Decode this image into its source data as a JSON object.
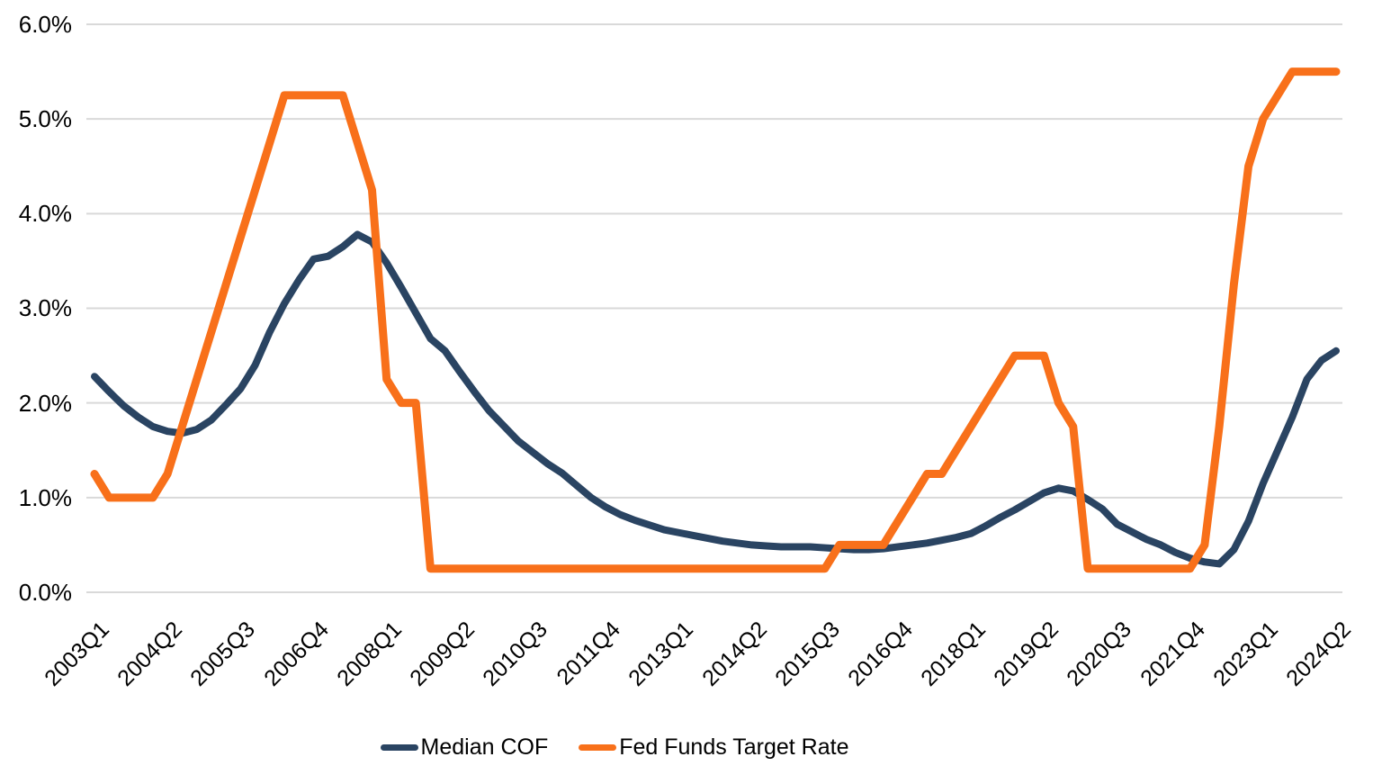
{
  "page": {
    "background": "#FFFFFF",
    "text_color": "#000000"
  },
  "chart_data": {
    "type": "line",
    "title": "",
    "grid": {
      "horizontal": true,
      "color": "#D9D9D9"
    },
    "legend": {
      "position": "bottom"
    },
    "y_axis": {
      "min": 0,
      "max": 6,
      "unit": "%",
      "tick_labels": [
        "0.0%",
        "1.0%",
        "2.0%",
        "3.0%",
        "4.0%",
        "5.0%",
        "6.0%"
      ],
      "tick_values": [
        0,
        1,
        2,
        3,
        4,
        5,
        6
      ]
    },
    "x_axis": {
      "tick_labels": [
        "2003Q1",
        "2004Q2",
        "2005Q3",
        "2006Q4",
        "2008Q1",
        "2009Q2",
        "2010Q3",
        "2011Q4",
        "2013Q1",
        "2014Q2",
        "2015Q3",
        "2016Q4",
        "2018Q1",
        "2019Q2",
        "2020Q3",
        "2021Q4",
        "2023Q1",
        "2024Q2"
      ],
      "quarters": [
        "2003Q1",
        "2003Q2",
        "2003Q3",
        "2003Q4",
        "2004Q1",
        "2004Q2",
        "2004Q3",
        "2004Q4",
        "2005Q1",
        "2005Q2",
        "2005Q3",
        "2005Q4",
        "2006Q1",
        "2006Q2",
        "2006Q3",
        "2006Q4",
        "2007Q1",
        "2007Q2",
        "2007Q3",
        "2007Q4",
        "2008Q1",
        "2008Q2",
        "2008Q3",
        "2008Q4",
        "2009Q1",
        "2009Q2",
        "2009Q3",
        "2009Q4",
        "2010Q1",
        "2010Q2",
        "2010Q3",
        "2010Q4",
        "2011Q1",
        "2011Q2",
        "2011Q3",
        "2011Q4",
        "2012Q1",
        "2012Q2",
        "2012Q3",
        "2012Q4",
        "2013Q1",
        "2013Q2",
        "2013Q3",
        "2013Q4",
        "2014Q1",
        "2014Q2",
        "2014Q3",
        "2014Q4",
        "2015Q1",
        "2015Q2",
        "2015Q3",
        "2015Q4",
        "2016Q1",
        "2016Q2",
        "2016Q3",
        "2016Q4",
        "2017Q1",
        "2017Q2",
        "2017Q3",
        "2017Q4",
        "2018Q1",
        "2018Q2",
        "2018Q3",
        "2018Q4",
        "2019Q1",
        "2019Q2",
        "2019Q3",
        "2019Q4",
        "2020Q1",
        "2020Q2",
        "2020Q3",
        "2020Q4",
        "2021Q1",
        "2021Q2",
        "2021Q3",
        "2021Q4",
        "2022Q1",
        "2022Q2",
        "2022Q3",
        "2022Q4",
        "2023Q1",
        "2023Q2",
        "2023Q3",
        "2023Q4",
        "2024Q1",
        "2024Q2"
      ]
    },
    "series": [
      {
        "name": "Median COF",
        "color": "#2A4462",
        "stroke_width": 8,
        "values": [
          2.28,
          2.12,
          1.97,
          1.85,
          1.75,
          1.7,
          1.68,
          1.72,
          1.82,
          1.98,
          2.15,
          2.4,
          2.75,
          3.05,
          3.3,
          3.52,
          3.55,
          3.65,
          3.78,
          3.7,
          3.48,
          3.22,
          2.95,
          2.68,
          2.55,
          2.33,
          2.12,
          1.92,
          1.76,
          1.6,
          1.48,
          1.36,
          1.26,
          1.13,
          1.0,
          0.9,
          0.82,
          0.76,
          0.71,
          0.66,
          0.63,
          0.6,
          0.57,
          0.54,
          0.52,
          0.5,
          0.49,
          0.48,
          0.48,
          0.48,
          0.47,
          0.46,
          0.45,
          0.45,
          0.46,
          0.48,
          0.5,
          0.52,
          0.55,
          0.58,
          0.62,
          0.7,
          0.79,
          0.87,
          0.96,
          1.05,
          1.1,
          1.07,
          0.98,
          0.88,
          0.72,
          0.64,
          0.56,
          0.5,
          0.42,
          0.36,
          0.32,
          0.3,
          0.45,
          0.75,
          1.15,
          1.5,
          1.85,
          2.25,
          2.45,
          2.55
        ]
      },
      {
        "name": "Fed Funds Target Rate",
        "color": "#F8701A",
        "stroke_width": 9,
        "values": [
          1.25,
          1.0,
          1.0,
          1.0,
          1.0,
          1.25,
          1.75,
          2.25,
          2.75,
          3.25,
          3.75,
          4.25,
          4.75,
          5.25,
          5.25,
          5.25,
          5.25,
          5.25,
          4.75,
          4.25,
          2.25,
          2.0,
          2.0,
          0.25,
          0.25,
          0.25,
          0.25,
          0.25,
          0.25,
          0.25,
          0.25,
          0.25,
          0.25,
          0.25,
          0.25,
          0.25,
          0.25,
          0.25,
          0.25,
          0.25,
          0.25,
          0.25,
          0.25,
          0.25,
          0.25,
          0.25,
          0.25,
          0.25,
          0.25,
          0.25,
          0.25,
          0.5,
          0.5,
          0.5,
          0.5,
          0.75,
          1.0,
          1.25,
          1.25,
          1.5,
          1.75,
          2.0,
          2.25,
          2.5,
          2.5,
          2.5,
          2.0,
          1.75,
          0.25,
          0.25,
          0.25,
          0.25,
          0.25,
          0.25,
          0.25,
          0.25,
          0.5,
          1.75,
          3.25,
          4.5,
          5.0,
          5.25,
          5.5,
          5.5,
          5.5,
          5.5
        ]
      }
    ]
  }
}
